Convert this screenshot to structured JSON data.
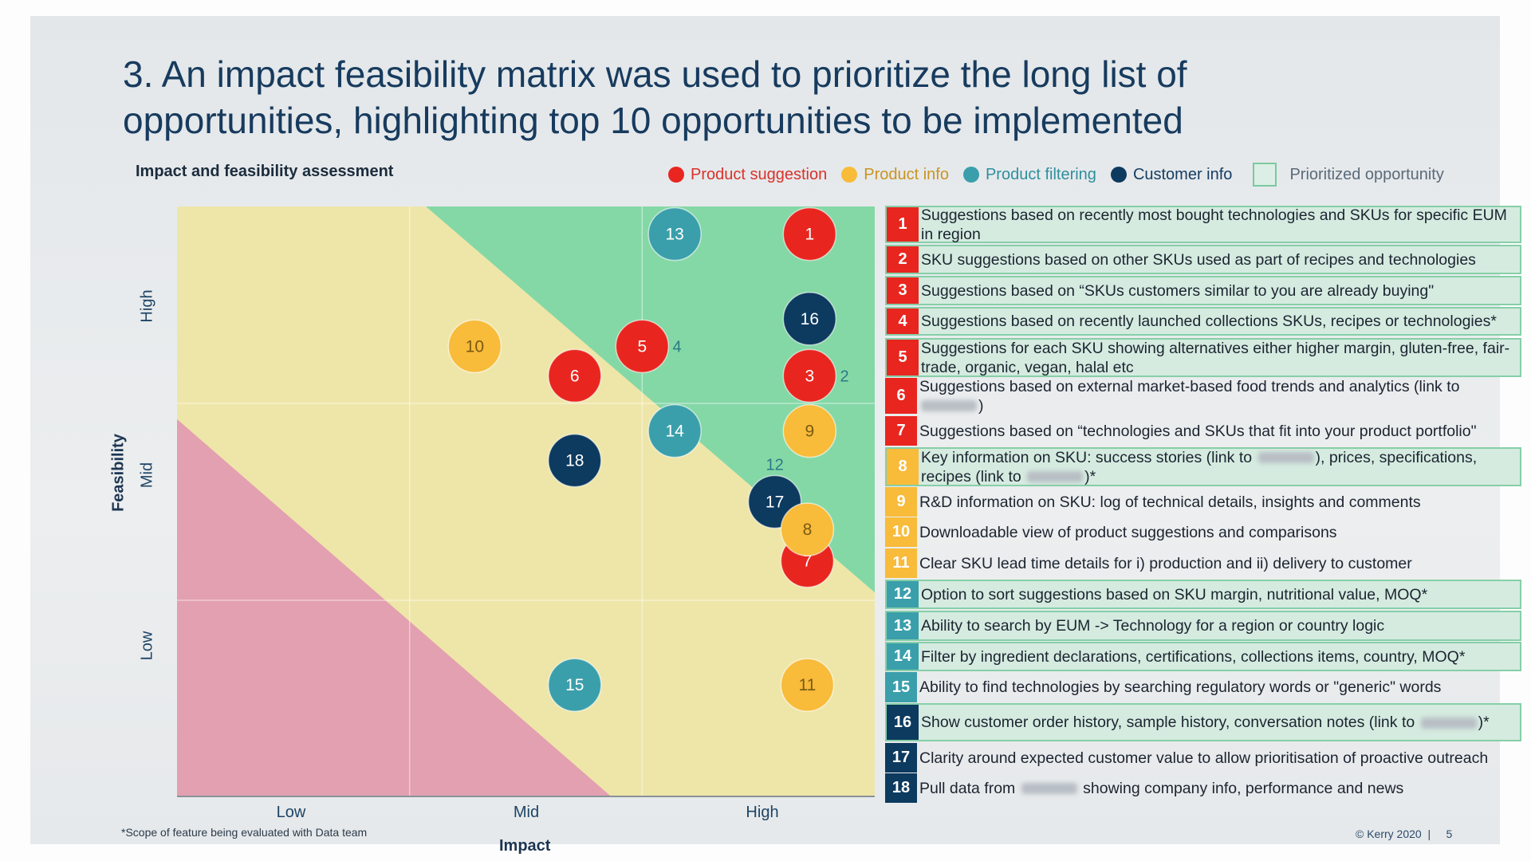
{
  "title_line1": "3. An impact feasibility matrix was used to prioritize the long list of",
  "title_line2": "opportunities, highlighting top 10 opportunities to be implemented",
  "subtitle": "Impact and feasibility assessment",
  "legend": [
    {
      "label": "Product suggestion",
      "color": "#e8261f"
    },
    {
      "label": "Product info",
      "color": "#f8bb3a"
    },
    {
      "label": "Product filtering",
      "color": "#3a9fab"
    },
    {
      "label": "Customer info",
      "color": "#0d3a5f"
    }
  ],
  "legend_prioritized": "Prioritized opportunity",
  "colors": {
    "green_zone": "#84d8a6",
    "yellow_zone": "#eee6a8",
    "pink_zone": "#e3a0b1"
  },
  "axes": {
    "x_title": "Impact",
    "x_ticks": [
      "Low",
      "Mid",
      "High"
    ],
    "y_title": "Feasibility",
    "y_ticks": [
      "Low",
      "Mid",
      "High"
    ],
    "x_range": [
      0,
      3
    ],
    "y_range": [
      0,
      3
    ]
  },
  "chart_data": {
    "type": "scatter",
    "xlabel": "Impact",
    "ylabel": "Feasibility",
    "xlim": [
      0,
      3
    ],
    "ylim": [
      0,
      3
    ],
    "zones": {
      "green_boundary": [
        [
          1.07,
          3
        ],
        [
          3,
          1.04
        ]
      ],
      "pink_boundary": [
        [
          0,
          1.92
        ],
        [
          1.87,
          0
        ]
      ]
    },
    "points": [
      {
        "id": "1",
        "category": "Product suggestion",
        "impact": 2.72,
        "feasibility": 2.86
      },
      {
        "id": "13",
        "category": "Product filtering",
        "impact": 2.14,
        "feasibility": 2.86
      },
      {
        "id": "16",
        "category": "Customer info",
        "impact": 2.72,
        "feasibility": 2.43
      },
      {
        "id": "10",
        "category": "Product info",
        "impact": 1.28,
        "feasibility": 2.29
      },
      {
        "id": "5",
        "category": "Product suggestion",
        "impact": 2.0,
        "feasibility": 2.29
      },
      {
        "id": "6",
        "category": "Product suggestion",
        "impact": 1.71,
        "feasibility": 2.14
      },
      {
        "id": "3",
        "category": "Product suggestion",
        "impact": 2.72,
        "feasibility": 2.14
      },
      {
        "id": "14",
        "category": "Product filtering",
        "impact": 2.14,
        "feasibility": 1.86
      },
      {
        "id": "9",
        "category": "Product info",
        "impact": 2.72,
        "feasibility": 1.86
      },
      {
        "id": "18",
        "category": "Customer info",
        "impact": 1.71,
        "feasibility": 1.71
      },
      {
        "id": "7",
        "category": "Product suggestion",
        "impact": 2.71,
        "feasibility": 1.2
      },
      {
        "id": "17",
        "category": "Customer info",
        "impact": 2.57,
        "feasibility": 1.5
      },
      {
        "id": "8",
        "category": "Product info",
        "impact": 2.71,
        "feasibility": 1.36
      },
      {
        "id": "15",
        "category": "Product filtering",
        "impact": 1.71,
        "feasibility": 0.57
      },
      {
        "id": "11",
        "category": "Product info",
        "impact": 2.71,
        "feasibility": 0.57
      }
    ],
    "text_labels": [
      {
        "id": "4",
        "category": "Product suggestion",
        "impact": 2.15,
        "feasibility": 2.29
      },
      {
        "id": "2",
        "category": "Product suggestion",
        "impact": 2.87,
        "feasibility": 2.14
      },
      {
        "id": "12",
        "category": "Product filtering",
        "impact": 2.57,
        "feasibility": 1.69
      }
    ]
  },
  "opportunities": [
    {
      "n": "1",
      "category": "Product suggestion",
      "prioritized": true,
      "parts": [
        "Suggestions based on recently most bought technologies and SKUs for specific EUM in region"
      ]
    },
    {
      "n": "2",
      "category": "Product suggestion",
      "prioritized": true,
      "parts": [
        "SKU suggestions based on other SKUs used as part of recipes and technologies"
      ]
    },
    {
      "n": "3",
      "category": "Product suggestion",
      "prioritized": true,
      "parts": [
        "Suggestions based on “SKUs customers similar to you are already buying\""
      ]
    },
    {
      "n": "4",
      "category": "Product suggestion",
      "prioritized": true,
      "parts": [
        "Suggestions based on recently launched collections SKUs, recipes or technologies*"
      ]
    },
    {
      "n": "5",
      "category": "Product suggestion",
      "prioritized": true,
      "parts": [
        "Suggestions for each SKU showing alternatives either higher margin, gluten-free, fair-trade, organic, vegan, halal etc"
      ]
    },
    {
      "n": "6",
      "category": "Product suggestion",
      "prioritized": false,
      "parts": [
        "Suggestions based on external market-based food trends and analytics (link to ",
        null,
        ")"
      ]
    },
    {
      "n": "7",
      "category": "Product suggestion",
      "prioritized": false,
      "parts": [
        "Suggestions based on “technologies and SKUs that fit into your product portfolio\""
      ]
    },
    {
      "n": "8",
      "category": "Product info",
      "prioritized": true,
      "parts": [
        "Key information on SKU: success stories (link to ",
        null,
        "), prices, specifications, recipes (link to ",
        null,
        ")*"
      ]
    },
    {
      "n": "9",
      "category": "Product info",
      "prioritized": false,
      "parts": [
        "R&D information on SKU: log of technical details, insights and comments"
      ]
    },
    {
      "n": "10",
      "category": "Product info",
      "prioritized": false,
      "parts": [
        "Downloadable view of product suggestions and comparisons"
      ]
    },
    {
      "n": "11",
      "category": "Product info",
      "prioritized": false,
      "parts": [
        "Clear SKU lead time details for i) production and ii) delivery to customer"
      ]
    },
    {
      "n": "12",
      "category": "Product filtering",
      "prioritized": true,
      "parts": [
        "Option to sort suggestions based on SKU margin, nutritional value, MOQ*"
      ]
    },
    {
      "n": "13",
      "category": "Product filtering",
      "prioritized": true,
      "parts": [
        "Ability to search by EUM -> Technology for a region or country logic"
      ]
    },
    {
      "n": "14",
      "category": "Product filtering",
      "prioritized": true,
      "parts": [
        "Filter by ingredient declarations, certifications, collections items, country, MOQ*"
      ]
    },
    {
      "n": "15",
      "category": "Product filtering",
      "prioritized": false,
      "parts": [
        "Ability to find technologies by searching regulatory words or \"generic\" words"
      ]
    },
    {
      "n": "16",
      "category": "Customer info",
      "prioritized": true,
      "parts": [
        "Show customer order history, sample history, conversation notes (link to ",
        null,
        ")*"
      ]
    },
    {
      "n": "17",
      "category": "Customer info",
      "prioritized": false,
      "parts": [
        "Clarity around expected customer value to allow prioritisation of proactive outreach"
      ]
    },
    {
      "n": "18",
      "category": "Customer info",
      "prioritized": false,
      "parts": [
        "Pull data from ",
        null,
        " showing company info, performance and news"
      ]
    }
  ],
  "footnote": "*Scope of feature being evaluated with Data team",
  "copyright": "© Kerry 2020  |     5"
}
